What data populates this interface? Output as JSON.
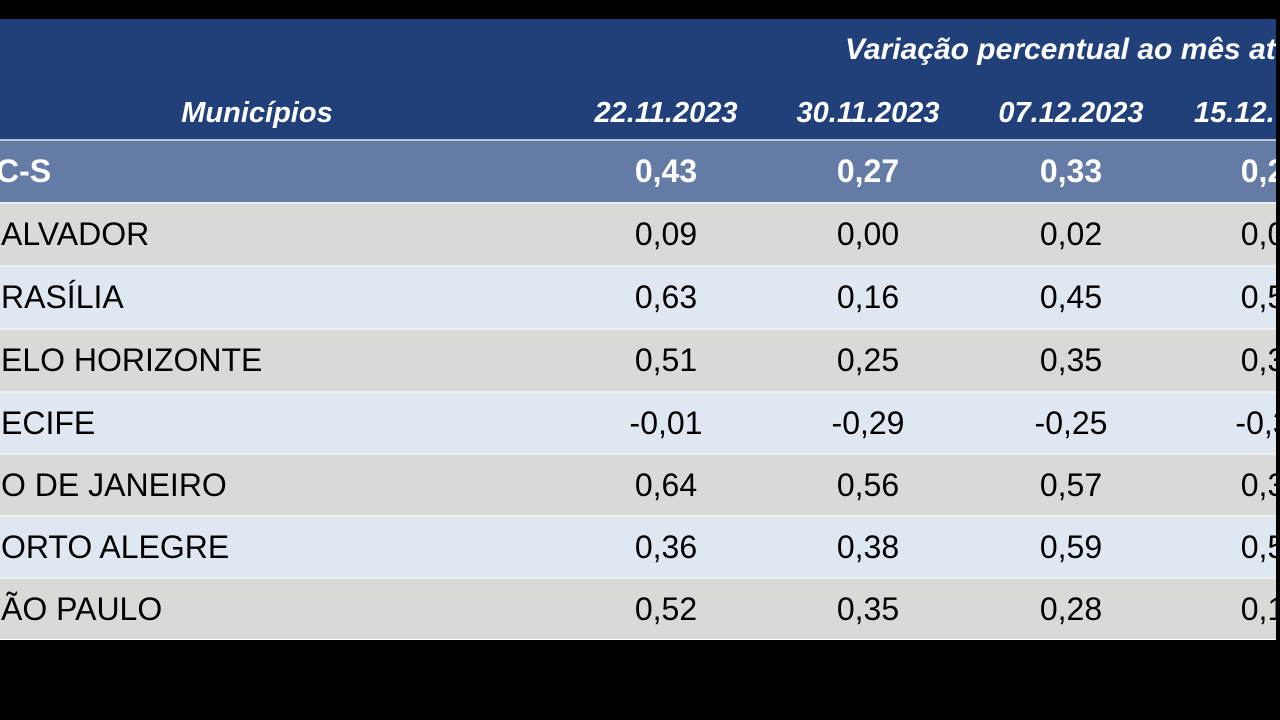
{
  "chart_data": {
    "type": "table",
    "title": "Variação percentual ao mês at",
    "columns": [
      "Municípios",
      "22.11.2023",
      "30.11.2023",
      "07.12.2023",
      "15.12."
    ],
    "rows": [
      {
        "name": "C-S",
        "values": [
          "0,43",
          "0,27",
          "0,33",
          "0,2"
        ],
        "highlight": true
      },
      {
        "name": "ALVADOR",
        "values": [
          "0,09",
          "0,00",
          "0,02",
          "0,0"
        ],
        "highlight": false
      },
      {
        "name": "RASÍLIA",
        "values": [
          "0,63",
          "0,16",
          "0,45",
          "0,5"
        ],
        "highlight": false
      },
      {
        "name": "ELO HORIZONTE",
        "values": [
          "0,51",
          "0,25",
          "0,35",
          "0,3"
        ],
        "highlight": false
      },
      {
        "name": "ECIFE",
        "values": [
          "-0,01",
          "-0,29",
          "-0,25",
          "-0,3"
        ],
        "highlight": false
      },
      {
        "name": "O DE JANEIRO",
        "values": [
          "0,64",
          "0,56",
          "0,57",
          "0,3"
        ],
        "highlight": false
      },
      {
        "name": "ORTO ALEGRE",
        "values": [
          "0,36",
          "0,38",
          "0,59",
          "0,5"
        ],
        "highlight": false
      },
      {
        "name": "ÃO PAULO",
        "values": [
          "0,52",
          "0,35",
          "0,28",
          "0,1"
        ],
        "highlight": false
      }
    ],
    "layout": {
      "header_background": "#21407A",
      "highlight_row_background": "#637BA5",
      "alt_row_backgrounds": [
        "#D9D9D6",
        "#DFE7F1"
      ],
      "header_text_color": "#FFFFFF",
      "body_text_color": "#000000",
      "page_background": "#000000",
      "grid": "horizontal separators only",
      "note": "table cropped at left and right edges"
    }
  }
}
